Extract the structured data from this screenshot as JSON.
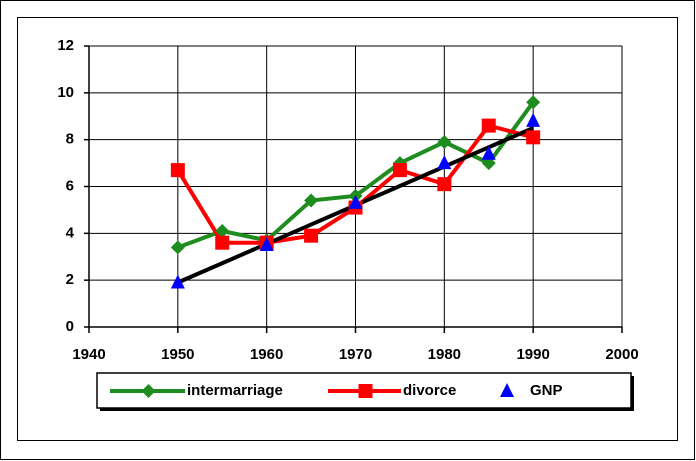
{
  "chart_data": {
    "type": "line",
    "xlim": [
      1940,
      2000
    ],
    "xticks": [
      1940,
      1950,
      1960,
      1970,
      1980,
      1990,
      2000
    ],
    "ylim": [
      0,
      12
    ],
    "yticks": [
      0,
      2,
      4,
      6,
      8,
      10,
      12
    ],
    "grid": true,
    "legend": "bottom",
    "series": [
      {
        "name": "intermarriage",
        "color": "#1e8c1e",
        "marker": "diamond",
        "line": true,
        "x": [
          1950,
          1955,
          1960,
          1965,
          1970,
          1975,
          1980,
          1985,
          1990
        ],
        "values": [
          3.4,
          4.1,
          3.7,
          5.4,
          5.6,
          7.0,
          7.9,
          7.0,
          9.6
        ]
      },
      {
        "name": "divorce",
        "color": "#ff0000",
        "marker": "square",
        "line": true,
        "x": [
          1950,
          1955,
          1960,
          1965,
          1970,
          1975,
          1980,
          1985,
          1990
        ],
        "values": [
          6.7,
          3.6,
          3.6,
          3.9,
          5.1,
          6.7,
          6.1,
          8.6,
          8.1
        ]
      },
      {
        "name": "GNP",
        "color": "#0000ff",
        "marker": "triangle",
        "line": false,
        "x": [
          1950,
          1960,
          1970,
          1980,
          1985,
          1990
        ],
        "values": [
          1.9,
          3.5,
          5.3,
          7.0,
          7.4,
          8.8
        ]
      },
      {
        "color": "#000000",
        "marker": "none",
        "line": true,
        "x": [
          1950,
          1990
        ],
        "values": [
          1.9,
          8.5
        ]
      }
    ]
  }
}
